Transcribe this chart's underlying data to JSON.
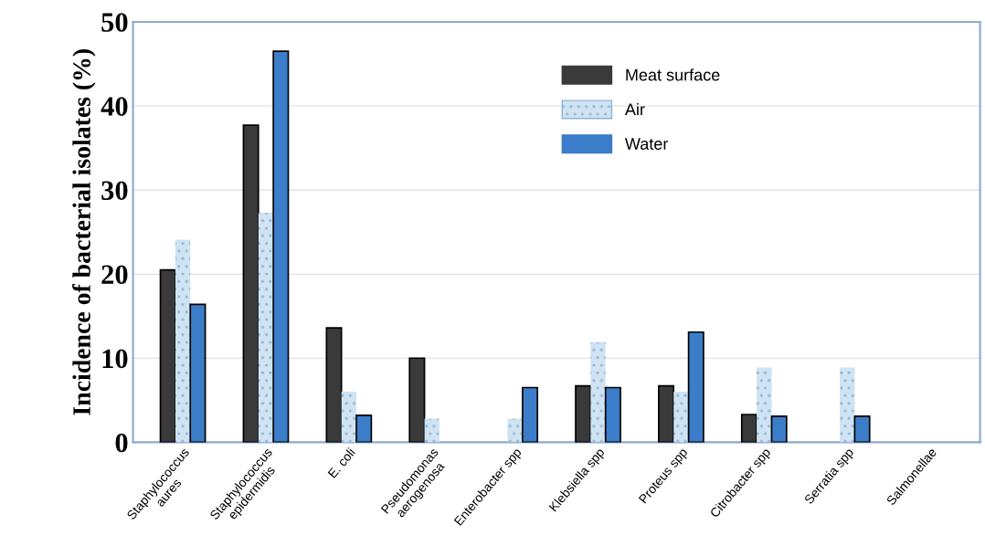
{
  "chart_data": {
    "type": "bar",
    "ylabel": "Incidence of bacterial isolates (%)",
    "categories": [
      "Staphylococcus\naures",
      "Staphylococcus\nepidermidis",
      "E. coli",
      "Pseudomonas\naerogenosa",
      "Enterobacter spp",
      "Klebsiella spp",
      "Proteus spp",
      "Citrobacter spp",
      "Serratia spp",
      "Salmonellae"
    ],
    "series": [
      {
        "name": "Meat surface",
        "color": "#3a3a3a",
        "values": [
          20.5,
          37.7,
          13.6,
          10.0,
          0,
          6.7,
          6.7,
          3.3,
          0,
          0
        ]
      },
      {
        "name": "Air",
        "color": "#cfe3f2",
        "values": [
          24.1,
          27.3,
          6.0,
          2.8,
          2.8,
          11.9,
          6.0,
          8.9,
          8.9,
          0
        ]
      },
      {
        "name": "Water",
        "color": "#3b7dc8",
        "values": [
          16.4,
          46.5,
          3.2,
          0,
          6.5,
          6.5,
          13.1,
          3.1,
          3.1,
          0
        ]
      }
    ],
    "ylim": [
      0,
      50
    ],
    "yticks": [
      0,
      10,
      20,
      30,
      40,
      50
    ],
    "grid": "y",
    "legend": "top center"
  }
}
